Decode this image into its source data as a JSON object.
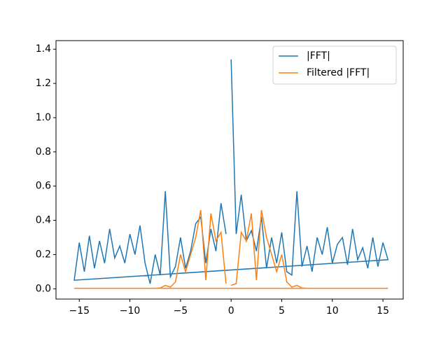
{
  "chart_data": {
    "type": "line",
    "x": [
      0,
      0.5,
      1,
      1.5,
      2,
      2.5,
      3,
      3.5,
      4,
      4.5,
      5,
      5.5,
      6,
      6.5,
      7,
      7.5,
      8,
      8.5,
      9,
      9.5,
      10,
      10.5,
      11,
      11.5,
      12,
      12.5,
      13,
      13.5,
      14,
      14.5,
      15,
      15.5,
      -15.5,
      -15,
      -14.5,
      -14,
      -13.5,
      -13,
      -12.5,
      -12,
      -11.5,
      -11,
      -10.5,
      -10,
      -9.5,
      -9,
      -8.5,
      -8,
      -7.5,
      -7,
      -6.5,
      -6,
      -5.5,
      -5,
      -4.5,
      -4,
      -3.5,
      -3,
      -2.5,
      -2,
      -1.5,
      -1,
      -0.5
    ],
    "series": [
      {
        "name": "|FFT|",
        "color": "#1f77b4",
        "values": [
          1.34,
          0.32,
          0.55,
          0.28,
          0.34,
          0.22,
          0.42,
          0.12,
          0.3,
          0.15,
          0.33,
          0.1,
          0.08,
          0.57,
          0.13,
          0.25,
          0.1,
          0.3,
          0.2,
          0.36,
          0.15,
          0.26,
          0.3,
          0.14,
          0.35,
          0.17,
          0.24,
          0.12,
          0.3,
          0.13,
          0.27,
          0.17,
          0.05,
          0.27,
          0.1,
          0.31,
          0.12,
          0.28,
          0.15,
          0.35,
          0.18,
          0.25,
          0.15,
          0.32,
          0.2,
          0.37,
          0.15,
          0.03,
          0.2,
          0.08,
          0.57,
          0.07,
          0.13,
          0.3,
          0.12,
          0.22,
          0.38,
          0.42,
          0.15,
          0.35,
          0.22,
          0.5,
          0.32
        ]
      },
      {
        "name": "Filtered |FFT|",
        "color": "#ff7f0e",
        "values": [
          0.02,
          0.03,
          0.33,
          0.28,
          0.44,
          0.05,
          0.46,
          0.3,
          0.2,
          0.1,
          0.2,
          0.04,
          0.01,
          0.02,
          0.005,
          0.003,
          0.003,
          0.003,
          0.003,
          0.003,
          0.003,
          0.003,
          0.003,
          0.003,
          0.003,
          0.003,
          0.003,
          0.003,
          0.003,
          0.003,
          0.003,
          0.003,
          0.003,
          0.003,
          0.003,
          0.003,
          0.003,
          0.003,
          0.003,
          0.003,
          0.003,
          0.003,
          0.003,
          0.003,
          0.003,
          0.003,
          0.003,
          0.003,
          0.003,
          0.005,
          0.02,
          0.01,
          0.04,
          0.2,
          0.1,
          0.2,
          0.3,
          0.46,
          0.05,
          0.44,
          0.28,
          0.33,
          0.03
        ]
      }
    ],
    "xlim": [
      -17.3,
      17.0
    ],
    "ylim": [
      -0.06,
      1.45
    ],
    "xticks": [
      {
        "value": -15,
        "label": "−15"
      },
      {
        "value": -10,
        "label": "−10"
      },
      {
        "value": -5,
        "label": "−5"
      },
      0,
      5,
      10,
      15
    ],
    "yticks": [
      {
        "value": 0,
        "label": "0.0"
      },
      {
        "value": 0.2,
        "label": "0.2"
      },
      {
        "value": 0.4,
        "label": "0.4"
      },
      {
        "value": 0.6,
        "label": "0.6"
      },
      {
        "value": 0.8,
        "label": "0.8"
      },
      {
        "value": 1.0,
        "label": "1.0"
      },
      {
        "value": 1.2,
        "label": "1.2"
      },
      {
        "value": 1.4,
        "label": "1.4"
      }
    ],
    "legend": "upper right"
  }
}
